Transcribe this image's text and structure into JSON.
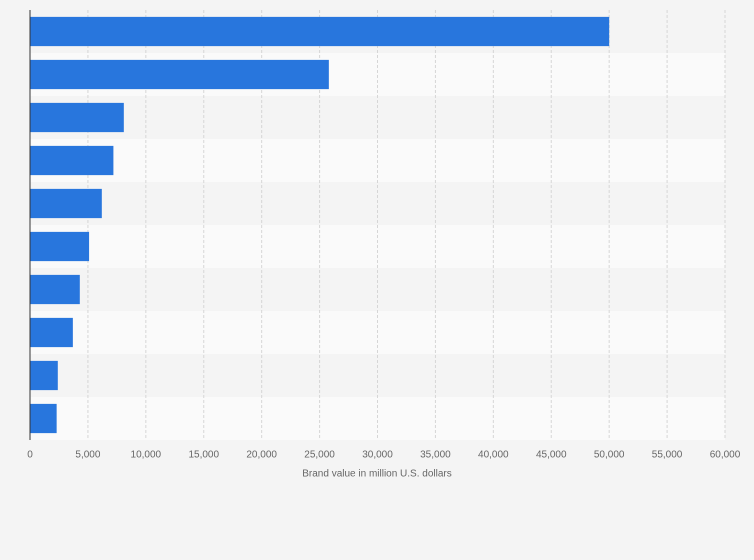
{
  "chart_data": {
    "type": "hbar",
    "categories": [
      null,
      null,
      null,
      null,
      null,
      null,
      null,
      null,
      null,
      null
    ],
    "values": [
      50000,
      25800,
      8100,
      7200,
      6200,
      5100,
      4300,
      3700,
      2400,
      2300
    ],
    "color": "#2876dd",
    "xlabel": "Brand value in million U.S. dollars",
    "xlim": [
      0,
      60000
    ],
    "xticks": [
      0,
      {
        "value": 5000,
        "label": "5,000"
      },
      {
        "value": 10000,
        "label": "10,000"
      },
      {
        "value": 15000,
        "label": "15,000"
      },
      {
        "value": 20000,
        "label": "20,000"
      },
      {
        "value": 25000,
        "label": "25,000"
      },
      {
        "value": 30000,
        "label": "30,000"
      },
      {
        "value": 35000,
        "label": "35,000"
      },
      {
        "value": 40000,
        "label": "40,000"
      },
      {
        "value": 45000,
        "label": "45,000"
      },
      {
        "value": 50000,
        "label": "50,000"
      },
      {
        "value": 55000,
        "label": "55,000"
      },
      {
        "value": 60000,
        "label": "60,000"
      }
    ],
    "grid": true
  }
}
